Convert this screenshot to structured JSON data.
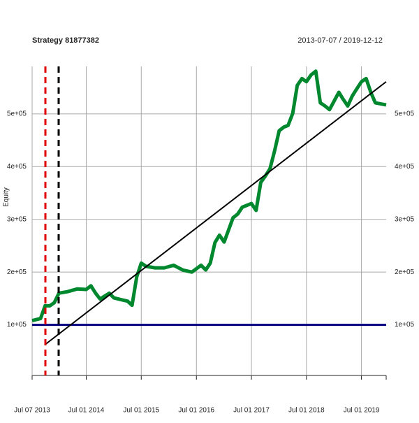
{
  "chart_data": {
    "type": "line",
    "title": "Strategy 81877382",
    "subtitle": "2013-07-07 / 2019-12-12",
    "y_label": "Equity",
    "xlim": [
      "2013-07-07",
      "2019-12-12"
    ],
    "xticks": [
      {
        "value": "2013-07-07",
        "label": "Jul 07 2013"
      },
      {
        "value": "2014-07-01",
        "label": "Jul 01 2014"
      },
      {
        "value": "2015-07-01",
        "label": "Jul 01 2015"
      },
      {
        "value": "2016-07-01",
        "label": "Jul 01 2016"
      },
      {
        "value": "2017-07-01",
        "label": "Jul 01 2017"
      },
      {
        "value": "2018-07-01",
        "label": "Jul 01 2018"
      },
      {
        "value": "2019-07-01",
        "label": "Jul 01 2019"
      }
    ],
    "ylim": [
      0,
      590000
    ],
    "yticks": [
      {
        "value": 100000,
        "label": "1e+05"
      },
      {
        "value": 200000,
        "label": "2e+05"
      },
      {
        "value": 300000,
        "label": "3e+05"
      },
      {
        "value": 400000,
        "label": "4e+05"
      },
      {
        "value": 500000,
        "label": "5e+05"
      }
    ],
    "grid": true,
    "x": [
      "2013-07-07",
      "2013-09-01",
      "2013-10-01",
      "2013-11-01",
      "2013-12-01",
      "2014-01-01",
      "2014-03-01",
      "2014-05-01",
      "2014-07-01",
      "2014-08-01",
      "2014-09-01",
      "2014-10-01",
      "2014-12-01",
      "2015-01-01",
      "2015-03-01",
      "2015-04-01",
      "2015-05-01",
      "2015-06-01",
      "2015-07-01",
      "2015-08-01",
      "2015-10-01",
      "2015-12-01",
      "2016-02-01",
      "2016-04-01",
      "2016-06-01",
      "2016-08-01",
      "2016-09-01",
      "2016-10-01",
      "2016-11-01",
      "2016-12-01",
      "2017-01-01",
      "2017-03-01",
      "2017-04-01",
      "2017-05-01",
      "2017-07-01",
      "2017-08-01",
      "2017-09-01",
      "2017-10-01",
      "2017-11-01",
      "2017-12-01",
      "2018-01-01",
      "2018-02-01",
      "2018-03-01",
      "2018-04-01",
      "2018-05-01",
      "2018-06-01",
      "2018-07-01",
      "2018-08-01",
      "2018-09-01",
      "2018-10-01",
      "2018-11-01",
      "2018-12-01",
      "2019-02-01",
      "2019-03-01",
      "2019-04-01",
      "2019-05-01",
      "2019-06-01",
      "2019-07-01",
      "2019-08-01",
      "2019-09-01",
      "2019-10-01",
      "2019-12-12"
    ],
    "series": [
      {
        "color": "#00882f",
        "values": [
          108000,
          112000,
          136000,
          136000,
          142000,
          160000,
          163000,
          168000,
          167000,
          174000,
          160000,
          149000,
          160000,
          151000,
          147000,
          145000,
          137000,
          191000,
          217000,
          211000,
          208000,
          208000,
          213000,
          204000,
          200000,
          213000,
          204000,
          217000,
          256000,
          270000,
          257000,
          303000,
          310000,
          323000,
          330000,
          317000,
          370000,
          382000,
          396000,
          429000,
          468000,
          475000,
          478000,
          501000,
          554000,
          567000,
          561000,
          574000,
          581000,
          521000,
          515000,
          508000,
          541000,
          528000,
          515000,
          534000,
          548000,
          561000,
          567000,
          541000,
          521000,
          517000
        ]
      }
    ],
    "trend": {
      "x": [
        "2013-10-03",
        "2019-12-12"
      ],
      "values": [
        63000,
        561000
      ],
      "color": "#000000"
    },
    "hline": {
      "value": 100000,
      "color": "#000080"
    },
    "vlines": [
      {
        "x": "2013-10-03",
        "color": "#e00000"
      },
      {
        "x": "2013-12-30",
        "color": "#000000"
      }
    ]
  }
}
